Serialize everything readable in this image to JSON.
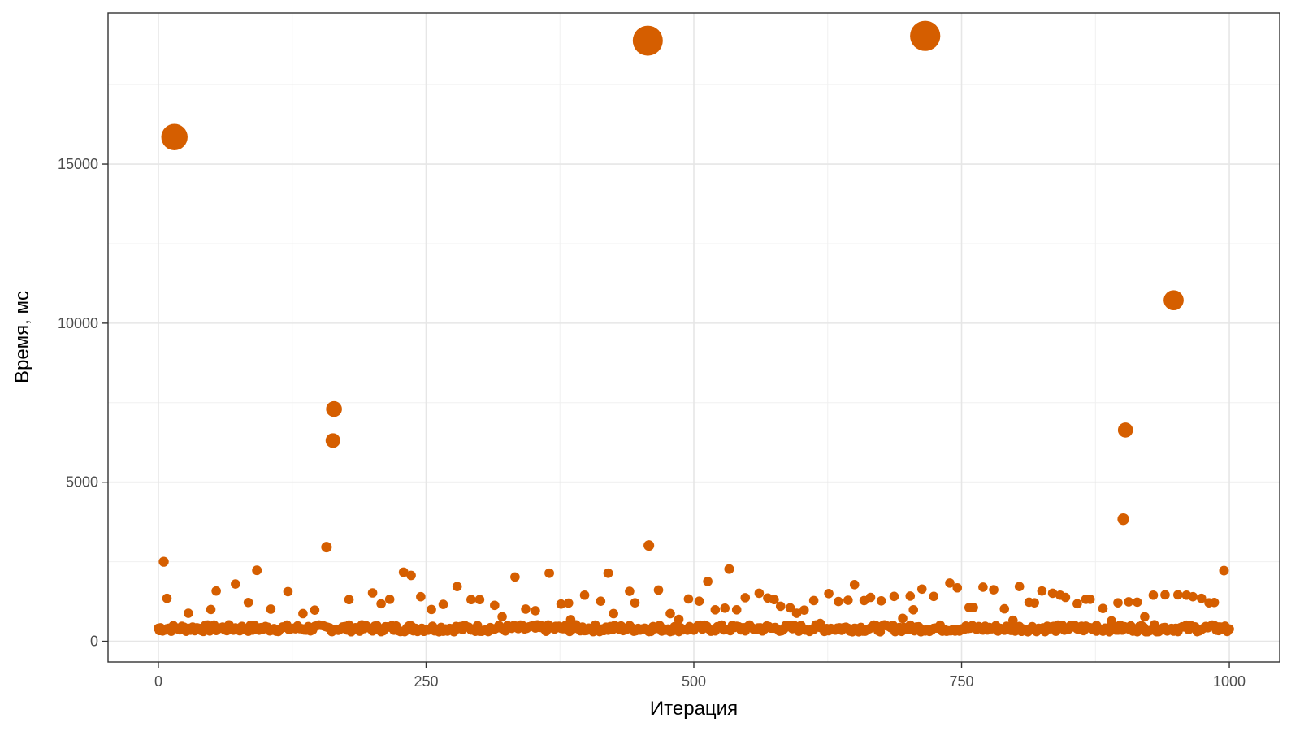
{
  "chart_data": {
    "type": "scatter",
    "xlabel": "Итерация",
    "ylabel": "Время, мс",
    "xlim": [
      -47,
      1047
    ],
    "ylim": [
      -650,
      19750
    ],
    "x_ticks": [
      0,
      250,
      500,
      750,
      1000
    ],
    "x_tick_labels": [
      "0",
      "250",
      "500",
      "750",
      "1000"
    ],
    "y_ticks": [
      0,
      5000,
      10000,
      15000
    ],
    "y_tick_labels": [
      "0",
      "5000",
      "10000",
      "15000"
    ],
    "grid": true,
    "legend": "none",
    "point_color": "#D55E00",
    "point_size": "proportional to value",
    "series": [
      {
        "x": [
          15,
          457,
          716,
          948,
          164,
          163,
          903,
          901,
          157,
          458,
          5,
          995,
          92,
          229,
          236,
          333,
          365,
          420,
          533,
          739,
          650,
          72,
          513,
          279,
          825,
          804,
          770,
          780,
          746,
          713,
          54,
          121,
          467,
          440,
          835,
          561,
          702,
          960,
          1,
          245,
          300,
          495,
          575,
          8,
          626,
          847,
          896,
          870,
          974,
          590,
          603,
          687,
          665,
          675,
          813,
          858,
          383,
          413,
          445,
          505,
          529,
          914,
          981,
          178,
          208,
          216,
          292,
          314,
          376,
          398,
          548,
          569,
          581,
          635,
          757,
          790,
          882,
          28,
          49,
          84,
          105,
          135,
          146,
          200,
          255,
          266,
          321,
          343,
          352,
          371,
          385,
          425,
          478,
          486,
          520,
          540,
          596,
          612,
          618,
          644,
          659,
          695,
          705,
          724,
          761,
          798,
          818,
          842,
          866,
          876,
          890,
          906,
          921,
          929,
          940,
          952,
          966,
          986,
          990,
          998
        ]
      }
    ],
    "values": [
      15850,
      18880,
      19030,
      10720,
      7300,
      6310,
      6640,
      3840,
      2960,
      3010,
      2500,
      2220,
      2230,
      2170,
      2070,
      2020,
      2140,
      2140,
      2270,
      1830,
      1780,
      1800,
      1880,
      1720,
      1580,
      1720,
      1700,
      1620,
      1680,
      1640,
      1580,
      1560,
      1610,
      1570,
      1510,
      1510,
      1420,
      1450,
      340,
      1400,
      1310,
      1330,
      1310,
      1350,
      1500,
      1380,
      1210,
      1320,
      1350,
      1050,
      980,
      1410,
      1380,
      1270,
      1230,
      1180,
      1200,
      1260,
      1210,
      1260,
      1040,
      1230,
      1210,
      1310,
      1180,
      1320,
      1310,
      1130,
      1170,
      1450,
      1370,
      1360,
      1100,
      1250,
      1060,
      1020,
      1030,
      880,
      1000,
      1220,
      1010,
      870,
      980,
      1520,
      1000,
      1160,
      770,
      1010,
      960,
      470,
      680,
      870,
      870,
      690,
      990,
      990,
      880,
      1280,
      560,
      1290,
      1280,
      720,
      990,
      1410,
      1060,
      660,
      1210,
      1450,
      1320,
      500,
      640,
      1240,
      770,
      1450,
      1460,
      1460,
      1400,
      1220,
      450,
      310
    ]
  }
}
